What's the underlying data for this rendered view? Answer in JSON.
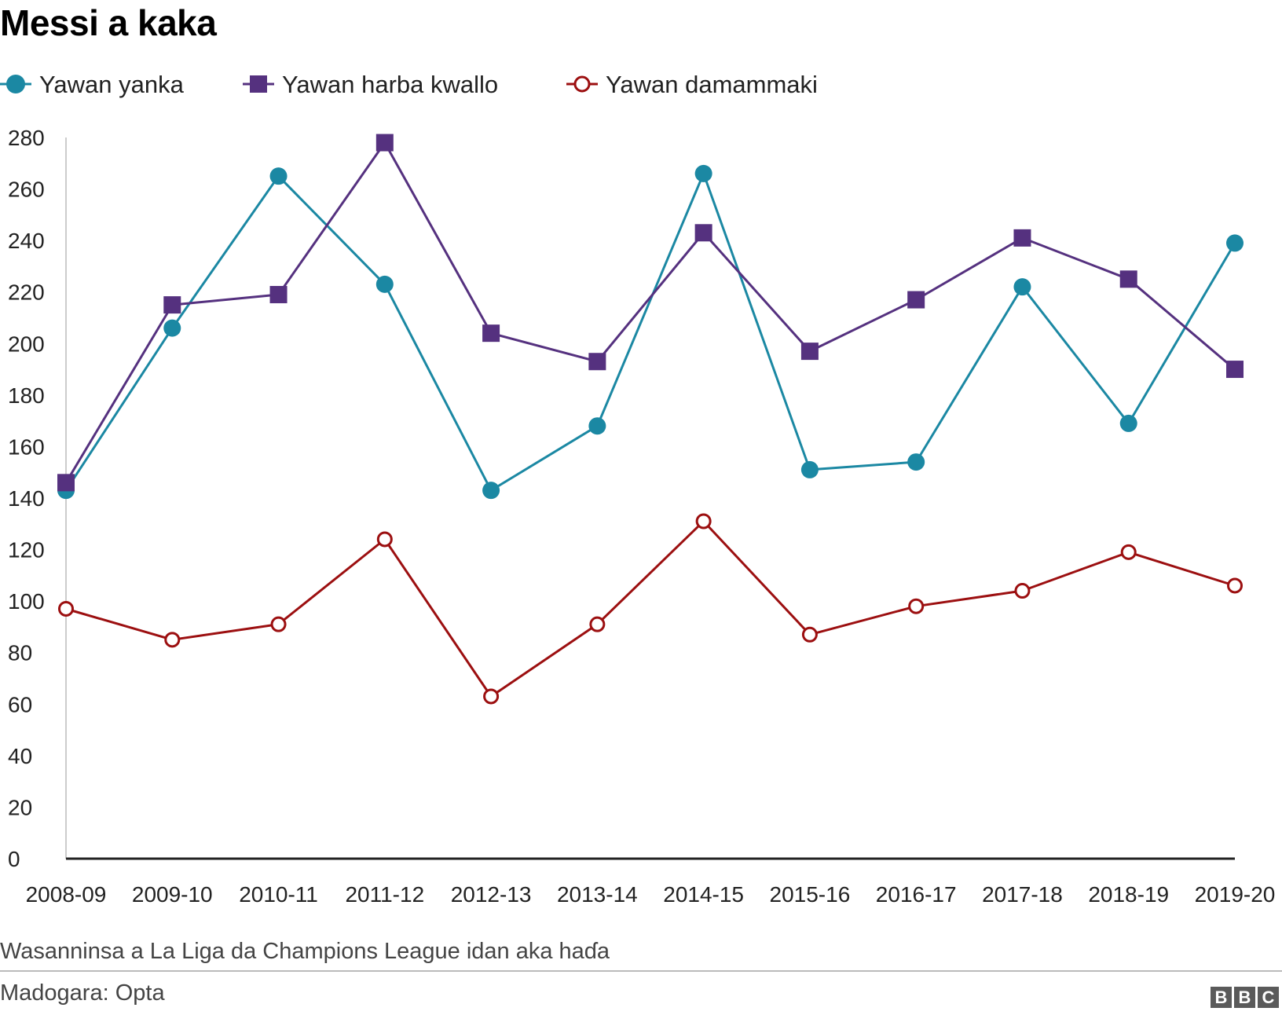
{
  "chart_data": {
    "type": "line",
    "title": "Messi a kaka",
    "xlabel": "",
    "ylabel": "",
    "ylim": [
      0,
      280
    ],
    "yticks": [
      0,
      20,
      40,
      60,
      80,
      100,
      120,
      140,
      160,
      180,
      200,
      220,
      240,
      260,
      280
    ],
    "categories": [
      "2008-09",
      "2009-10",
      "2010-11",
      "2011-12",
      "2012-13",
      "2013-14",
      "2014-15",
      "2015-16",
      "2016-17",
      "2017-18",
      "2018-19",
      "2019-20"
    ],
    "grid": false,
    "legend_position": "top-left",
    "series": [
      {
        "name": "Yawan yanka",
        "marker": "circle-filled",
        "color": "#1b88a3",
        "values": [
          143,
          206,
          265,
          223,
          143,
          168,
          266,
          151,
          154,
          222,
          169,
          239
        ]
      },
      {
        "name": "Yawan harba kwallo",
        "marker": "square-filled",
        "color": "#55317f",
        "values": [
          146,
          215,
          219,
          278,
          204,
          193,
          243,
          197,
          217,
          241,
          225,
          190
        ]
      },
      {
        "name": "Yawan damammaki",
        "marker": "circle-open",
        "color": "#9c0f10",
        "values": [
          97,
          85,
          91,
          124,
          63,
          91,
          131,
          87,
          98,
          104,
          119,
          106
        ]
      }
    ],
    "note": "Wasanninsa a La Liga da Champions League idan aka haɗa",
    "source": "Madogara: Opta"
  },
  "logo": {
    "letters": [
      "B",
      "B",
      "C"
    ]
  }
}
